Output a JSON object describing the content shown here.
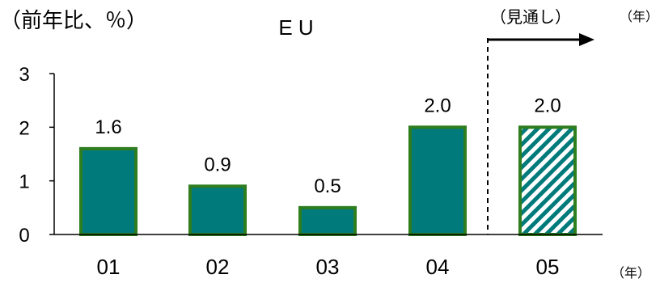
{
  "chart_data": {
    "type": "bar",
    "title": "E U",
    "unit_label": "（前年比、％）",
    "categories": [
      "01",
      "02",
      "03",
      "04",
      "05"
    ],
    "values": [
      1.6,
      0.9,
      0.5,
      2.0,
      2.0
    ],
    "value_labels": [
      "1.6",
      "0.9",
      "0.5",
      "2.0",
      "2.0"
    ],
    "forecast_index": 4,
    "forecast_label": "（見通し）",
    "year_label_top": "（年）",
    "xlabel": "（年）",
    "ylabel": "",
    "ylim": [
      0,
      3
    ],
    "yticks": [
      0,
      1,
      2,
      3
    ],
    "grid": false,
    "colors": {
      "bar_fill": "#007A7A",
      "bar_border": "#2E7D1F",
      "hatch": "#007A7A",
      "axis": "#000000"
    }
  }
}
